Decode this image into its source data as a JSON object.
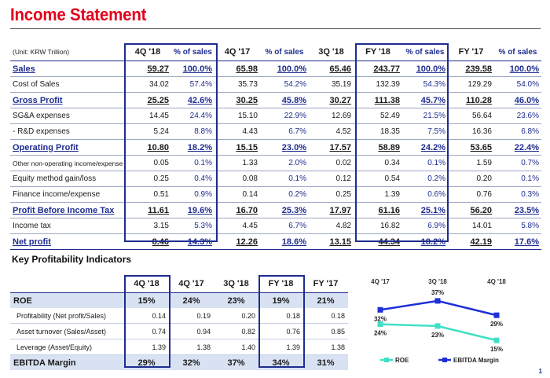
{
  "title": "Income Statement",
  "page_number": "1",
  "income_statement": {
    "unit": "(Unit: KRW Trillion)",
    "columns": [
      "4Q '18",
      "% of sales",
      "4Q '17",
      "% of sales",
      "3Q '18",
      "FY '18",
      "% of sales",
      "FY '17",
      "% of sales"
    ],
    "rows": [
      {
        "label": "Sales",
        "bold": true,
        "values": [
          "59.27",
          "100.0%",
          "65.98",
          "100.0%",
          "65.46",
          "243.77",
          "100.0%",
          "239.58",
          "100.0%"
        ]
      },
      {
        "label": "Cost of Sales",
        "bold": false,
        "values": [
          "34.02",
          "57.4%",
          "35.73",
          "54.2%",
          "35.19",
          "132.39",
          "54.3%",
          "129.29",
          "54.0%"
        ]
      },
      {
        "label": "Gross Profit",
        "bold": true,
        "values": [
          "25.25",
          "42.6%",
          "30.25",
          "45.8%",
          "30.27",
          "111.38",
          "45.7%",
          "110.28",
          "46.0%"
        ]
      },
      {
        "label": "SG&A expenses",
        "bold": false,
        "values": [
          "14.45",
          "24.4%",
          "15.10",
          "22.9%",
          "12.69",
          "52.49",
          "21.5%",
          "56.64",
          "23.6%"
        ]
      },
      {
        "label": "- R&D expenses",
        "bold": false,
        "values": [
          "5.24",
          "8.8%",
          "4.43",
          "6.7%",
          "4.52",
          "18.35",
          "7.5%",
          "16.36",
          "6.8%"
        ]
      },
      {
        "label": "Operating Profit",
        "bold": true,
        "values": [
          "10.80",
          "18.2%",
          "15.15",
          "23.0%",
          "17.57",
          "58.89",
          "24.2%",
          "53.65",
          "22.4%"
        ]
      },
      {
        "label": "Other non-operating income/expense",
        "bold": false,
        "small": true,
        "values": [
          "0.05",
          "0.1%",
          "1.33",
          "2.0%",
          "0.02",
          "0.34",
          "0.1%",
          "1.59",
          "0.7%"
        ]
      },
      {
        "label": "Equity method gain/loss",
        "bold": false,
        "values": [
          "0.25",
          "0.4%",
          "0.08",
          "0.1%",
          "0.12",
          "0.54",
          "0.2%",
          "0.20",
          "0.1%"
        ]
      },
      {
        "label": "Finance income/expense",
        "bold": false,
        "values": [
          "0.51",
          "0.9%",
          "0.14",
          "0.2%",
          "0.25",
          "1.39",
          "0.6%",
          "0.76",
          "0.3%"
        ]
      },
      {
        "label": "Profit Before Income Tax",
        "bold": true,
        "values": [
          "11.61",
          "19.6%",
          "16.70",
          "25.3%",
          "17.97",
          "61.16",
          "25.1%",
          "56.20",
          "23.5%"
        ]
      },
      {
        "label": "Income tax",
        "bold": false,
        "values": [
          "3.15",
          "5.3%",
          "4.45",
          "6.7%",
          "4.82",
          "16.82",
          "6.9%",
          "14.01",
          "5.8%"
        ]
      },
      {
        "label": "Net profit",
        "bold": true,
        "values": [
          "8.46",
          "14.3%",
          "12.26",
          "18.6%",
          "13.15",
          "44.34",
          "18.2%",
          "42.19",
          "17.6%"
        ]
      }
    ]
  },
  "key_profitability": {
    "title": "Key Profitability Indicators",
    "columns": [
      "4Q '18",
      "4Q '17",
      "3Q '18",
      "FY '18",
      "FY '17"
    ],
    "rows": [
      {
        "label": "ROE",
        "main": true,
        "values": [
          "15%",
          "24%",
          "23%",
          "19%",
          "21%"
        ]
      },
      {
        "label": "Profitability (Net profit/Sales)",
        "main": false,
        "values": [
          "0.14",
          "0.19",
          "0.20",
          "0.18",
          "0.18"
        ]
      },
      {
        "label": "Asset turnover (Sales/Asset)",
        "main": false,
        "values": [
          "0.74",
          "0.94",
          "0.82",
          "0.76",
          "0.85"
        ]
      },
      {
        "label": "Leverage (Asset/Equity)",
        "main": false,
        "values": [
          "1.39",
          "1.38",
          "1.40",
          "1.39",
          "1.38"
        ]
      },
      {
        "label": "EBITDA Margin",
        "main": true,
        "values": [
          "29%",
          "32%",
          "37%",
          "34%",
          "31%"
        ]
      }
    ]
  },
  "chart_data": {
    "type": "line",
    "categories": [
      "4Q '17",
      "3Q '18",
      "4Q '18"
    ],
    "series": [
      {
        "name": "ROE",
        "values": [
          24,
          23,
          15
        ],
        "labels": [
          "24%",
          "23%",
          "15%"
        ],
        "color": "#3fe0c5"
      },
      {
        "name": "EBITDA Margin",
        "values": [
          32,
          37,
          29
        ],
        "labels": [
          "32%",
          "37%",
          "29%"
        ],
        "color": "#1f2fd6"
      }
    ],
    "legend_position": "bottom",
    "grid": false
  }
}
